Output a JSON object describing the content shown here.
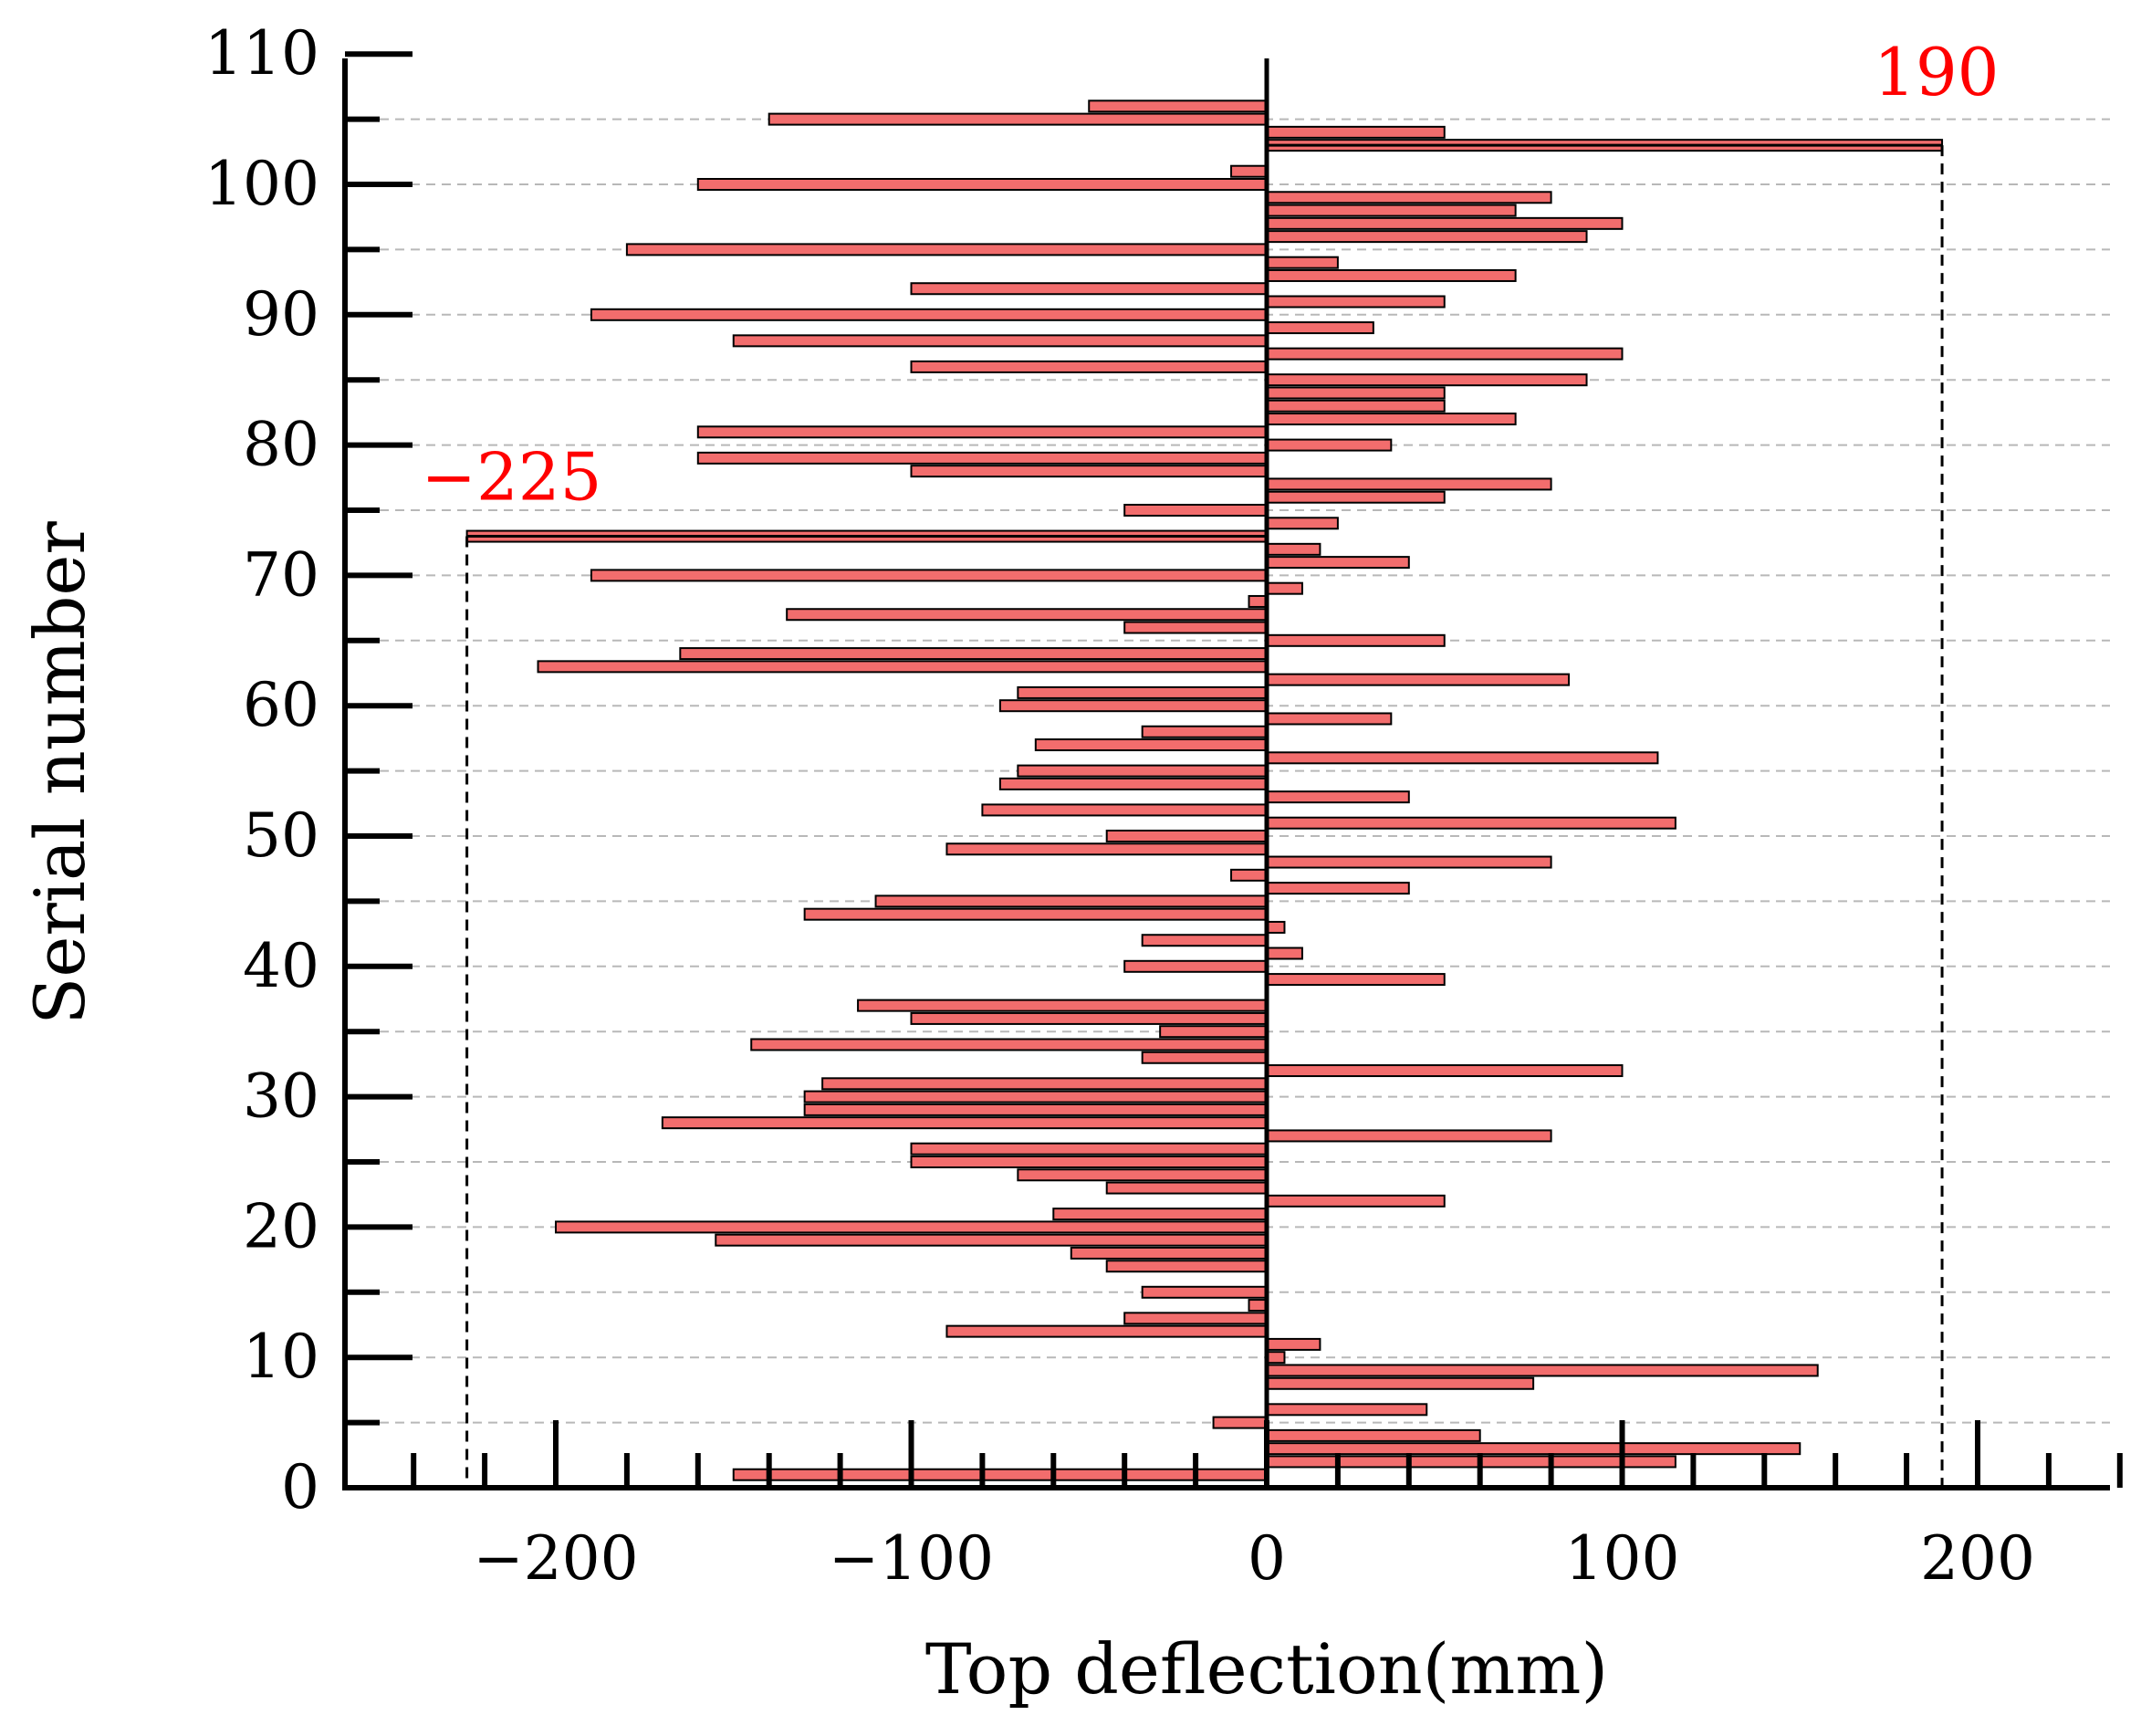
{
  "chart_data": {
    "type": "bar",
    "orientation": "horizontal",
    "title": "",
    "xlabel": "Top deflection(mm)",
    "ylabel": "Serial number",
    "xlim": [
      -260,
      240
    ],
    "ylim": [
      0,
      110
    ],
    "x_ticks": [
      -200,
      -100,
      0,
      100,
      200
    ],
    "x_tick_labels": [
      "−200",
      "−100",
      "0",
      "100",
      "200"
    ],
    "y_ticks": [
      0,
      10,
      20,
      30,
      40,
      50,
      60,
      70,
      80,
      90,
      100,
      110
    ],
    "y_tick_labels": [
      "0",
      "10",
      "20",
      "30",
      "40",
      "50",
      "60",
      "70",
      "80",
      "90",
      "100",
      "110"
    ],
    "grid": "horizontal dashed every 5",
    "bar_color": "#f26d6d",
    "bar_edge_color": "#000000",
    "annotation_color": "#ff0000",
    "annotations": [
      {
        "text": "−225",
        "serial": 73,
        "value": -225
      },
      {
        "text": "190",
        "serial": 103,
        "value": 190
      }
    ],
    "series": [
      {
        "name": "Top deflection",
        "values": [
          {
            "serial": 1,
            "value": -150
          },
          {
            "serial": 2,
            "value": 115
          },
          {
            "serial": 3,
            "value": 150
          },
          {
            "serial": 4,
            "value": 60
          },
          {
            "serial": 5,
            "value": -15
          },
          {
            "serial": 6,
            "value": 45
          },
          {
            "serial": 8,
            "value": 75
          },
          {
            "serial": 9,
            "value": 155
          },
          {
            "serial": 10,
            "value": 5
          },
          {
            "serial": 11,
            "value": 15
          },
          {
            "serial": 12,
            "value": -90
          },
          {
            "serial": 13,
            "value": -40
          },
          {
            "serial": 14,
            "value": -5
          },
          {
            "serial": 15,
            "value": -35
          },
          {
            "serial": 17,
            "value": -45
          },
          {
            "serial": 18,
            "value": -55
          },
          {
            "serial": 19,
            "value": -155
          },
          {
            "serial": 20,
            "value": -200
          },
          {
            "serial": 21,
            "value": -60
          },
          {
            "serial": 22,
            "value": 50
          },
          {
            "serial": 23,
            "value": -45
          },
          {
            "serial": 24,
            "value": -70
          },
          {
            "serial": 25,
            "value": -100
          },
          {
            "serial": 26,
            "value": -100
          },
          {
            "serial": 27,
            "value": 80
          },
          {
            "serial": 28,
            "value": -170
          },
          {
            "serial": 29,
            "value": -130
          },
          {
            "serial": 30,
            "value": -130
          },
          {
            "serial": 31,
            "value": -125
          },
          {
            "serial": 32,
            "value": 100
          },
          {
            "serial": 33,
            "value": -35
          },
          {
            "serial": 34,
            "value": -145
          },
          {
            "serial": 35,
            "value": -30
          },
          {
            "serial": 36,
            "value": -100
          },
          {
            "serial": 37,
            "value": -115
          },
          {
            "serial": 39,
            "value": 50
          },
          {
            "serial": 40,
            "value": -40
          },
          {
            "serial": 41,
            "value": 10
          },
          {
            "serial": 42,
            "value": -35
          },
          {
            "serial": 43,
            "value": 5
          },
          {
            "serial": 44,
            "value": -130
          },
          {
            "serial": 45,
            "value": -110
          },
          {
            "serial": 46,
            "value": 40
          },
          {
            "serial": 47,
            "value": -10
          },
          {
            "serial": 48,
            "value": 80
          },
          {
            "serial": 49,
            "value": -90
          },
          {
            "serial": 50,
            "value": -45
          },
          {
            "serial": 51,
            "value": 115
          },
          {
            "serial": 52,
            "value": -80
          },
          {
            "serial": 53,
            "value": 40
          },
          {
            "serial": 54,
            "value": -75
          },
          {
            "serial": 55,
            "value": -70
          },
          {
            "serial": 56,
            "value": 110
          },
          {
            "serial": 57,
            "value": -65
          },
          {
            "serial": 58,
            "value": -35
          },
          {
            "serial": 59,
            "value": 35
          },
          {
            "serial": 60,
            "value": -75
          },
          {
            "serial": 61,
            "value": -70
          },
          {
            "serial": 62,
            "value": 85
          },
          {
            "serial": 63,
            "value": -205
          },
          {
            "serial": 64,
            "value": -165
          },
          {
            "serial": 65,
            "value": 50
          },
          {
            "serial": 66,
            "value": -40
          },
          {
            "serial": 67,
            "value": -135
          },
          {
            "serial": 68,
            "value": -5
          },
          {
            "serial": 69,
            "value": 10
          },
          {
            "serial": 70,
            "value": -190
          },
          {
            "serial": 71,
            "value": 40
          },
          {
            "serial": 72,
            "value": 15
          },
          {
            "serial": 73,
            "value": -225
          },
          {
            "serial": 74,
            "value": 20
          },
          {
            "serial": 75,
            "value": -40
          },
          {
            "serial": 76,
            "value": 50
          },
          {
            "serial": 77,
            "value": 80
          },
          {
            "serial": 78,
            "value": -100
          },
          {
            "serial": 79,
            "value": -160
          },
          {
            "serial": 80,
            "value": 35
          },
          {
            "serial": 81,
            "value": -160
          },
          {
            "serial": 82,
            "value": 70
          },
          {
            "serial": 83,
            "value": 50
          },
          {
            "serial": 84,
            "value": 50
          },
          {
            "serial": 85,
            "value": 90
          },
          {
            "serial": 86,
            "value": -100
          },
          {
            "serial": 87,
            "value": 100
          },
          {
            "serial": 88,
            "value": -150
          },
          {
            "serial": 89,
            "value": 30
          },
          {
            "serial": 90,
            "value": -190
          },
          {
            "serial": 91,
            "value": 50
          },
          {
            "serial": 92,
            "value": -100
          },
          {
            "serial": 93,
            "value": 70
          },
          {
            "serial": 94,
            "value": 20
          },
          {
            "serial": 95,
            "value": -180
          },
          {
            "serial": 96,
            "value": 90
          },
          {
            "serial": 97,
            "value": 100
          },
          {
            "serial": 98,
            "value": 70
          },
          {
            "serial": 99,
            "value": 80
          },
          {
            "serial": 100,
            "value": -160
          },
          {
            "serial": 101,
            "value": -10
          },
          {
            "serial": 103,
            "value": 190
          },
          {
            "serial": 104,
            "value": 50
          },
          {
            "serial": 105,
            "value": -140
          },
          {
            "serial": 106,
            "value": -50
          }
        ]
      }
    ]
  }
}
